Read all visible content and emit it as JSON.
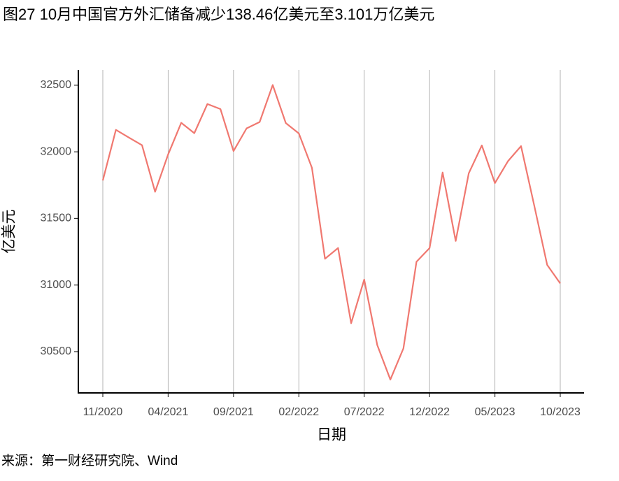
{
  "chart_data": {
    "type": "line",
    "title": "图27 10月中国官方外汇储备减少138.46亿美元至3.101万亿美元",
    "x_label": "日期",
    "y_label": "亿美元",
    "source": "来源：第一财经研究院、Wind",
    "categories": [
      "11/2020",
      null,
      null,
      null,
      null,
      "04/2021",
      null,
      null,
      null,
      null,
      "09/2021",
      null,
      null,
      null,
      null,
      "02/2022",
      null,
      null,
      null,
      null,
      "07/2022",
      null,
      null,
      null,
      null,
      "12/2022",
      null,
      null,
      null,
      null,
      "05/2023",
      null,
      null,
      null,
      null,
      "10/2023"
    ],
    "series": [
      {
        "name": "外汇储备",
        "color": "#f07870",
        "values": [
          31785,
          32165,
          32107,
          32050,
          31700,
          31981,
          32218,
          32140,
          32359,
          32321,
          32006,
          32176,
          32224,
          32502,
          32216,
          32138,
          31880,
          31197,
          31278,
          30713,
          31041,
          30549,
          30290,
          30524,
          31175,
          31277,
          31845,
          31331,
          31839,
          32048,
          31765,
          31930,
          32043,
          31601,
          31151,
          31012
        ]
      }
    ],
    "ylim": [
      30190,
      32615
    ],
    "yticks": [
      30500,
      31000,
      31500,
      32000,
      32500
    ],
    "grid": "x"
  }
}
